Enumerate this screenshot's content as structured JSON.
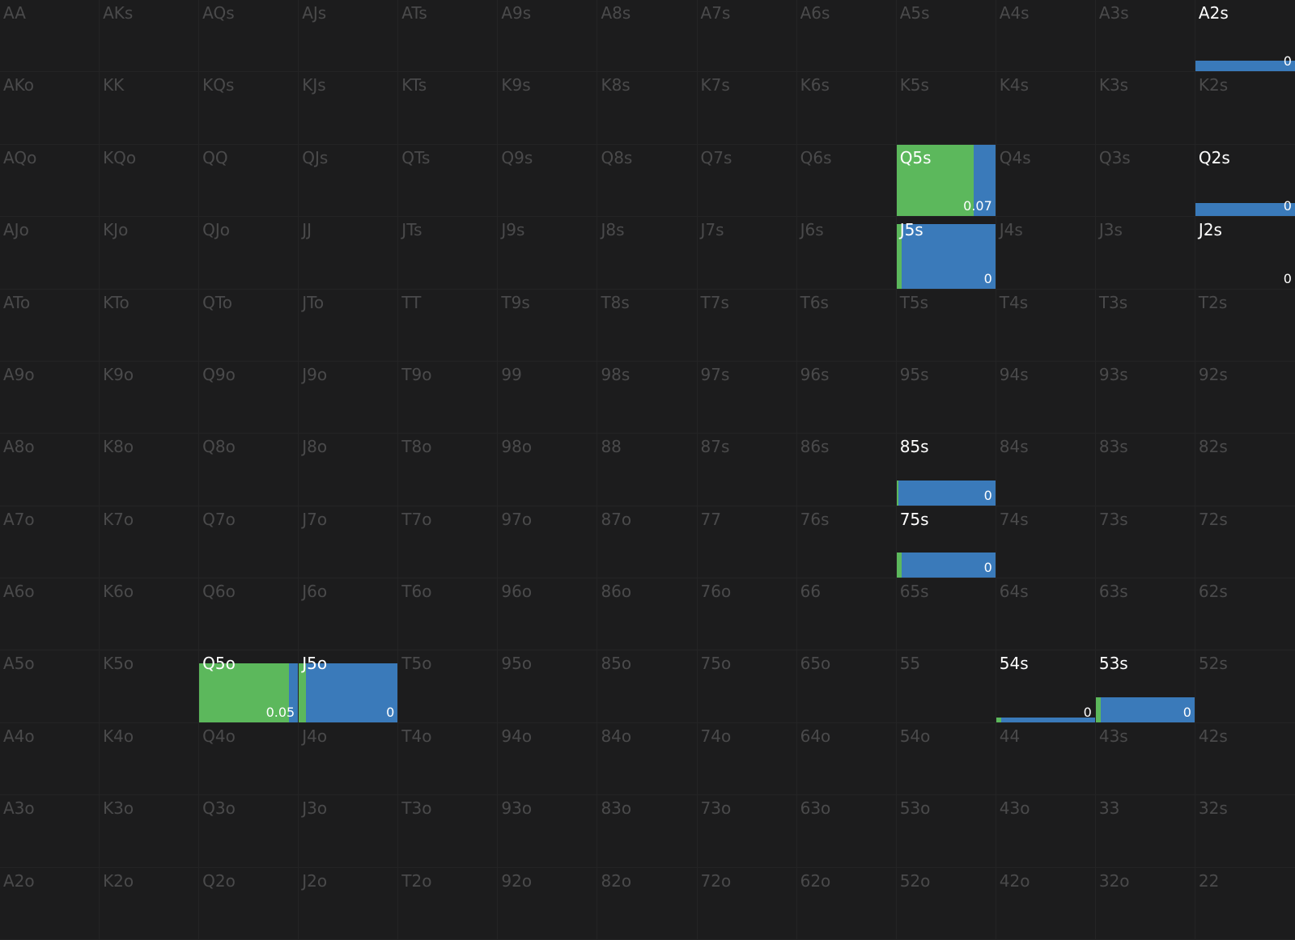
{
  "colors": {
    "background": "#1c1c1d",
    "inactive_label": "#4a4a4b",
    "active_label": "#ffffff",
    "green": "#5cb85c",
    "blue": "#3a7aba"
  },
  "rows": [
    [
      "AA",
      "AKs",
      "AQs",
      "AJs",
      "ATs",
      "A9s",
      "A8s",
      "A7s",
      "A6s",
      "A5s",
      "A4s",
      "A3s",
      "A2s"
    ],
    [
      "AKo",
      "KK",
      "KQs",
      "KJs",
      "KTs",
      "K9s",
      "K8s",
      "K7s",
      "K6s",
      "K5s",
      "K4s",
      "K3s",
      "K2s"
    ],
    [
      "AQo",
      "KQo",
      "QQ",
      "QJs",
      "QTs",
      "Q9s",
      "Q8s",
      "Q7s",
      "Q6s",
      "Q5s",
      "Q4s",
      "Q3s",
      "Q2s"
    ],
    [
      "AJo",
      "KJo",
      "QJo",
      "JJ",
      "JTs",
      "J9s",
      "J8s",
      "J7s",
      "J6s",
      "J5s",
      "J4s",
      "J3s",
      "J2s"
    ],
    [
      "ATo",
      "KTo",
      "QTo",
      "JTo",
      "TT",
      "T9s",
      "T8s",
      "T7s",
      "T6s",
      "T5s",
      "T4s",
      "T3s",
      "T2s"
    ],
    [
      "A9o",
      "K9o",
      "Q9o",
      "J9o",
      "T9o",
      "99",
      "98s",
      "97s",
      "96s",
      "95s",
      "94s",
      "93s",
      "92s"
    ],
    [
      "A8o",
      "K8o",
      "Q8o",
      "J8o",
      "T8o",
      "98o",
      "88",
      "87s",
      "86s",
      "85s",
      "84s",
      "83s",
      "82s"
    ],
    [
      "A7o",
      "K7o",
      "Q7o",
      "J7o",
      "T7o",
      "97o",
      "87o",
      "77",
      "76s",
      "75s",
      "74s",
      "73s",
      "72s"
    ],
    [
      "A6o",
      "K6o",
      "Q6o",
      "J6o",
      "T6o",
      "96o",
      "86o",
      "76o",
      "66",
      "65s",
      "64s",
      "63s",
      "62s"
    ],
    [
      "A5o",
      "K5o",
      "Q5o",
      "J5o",
      "T5o",
      "95o",
      "85o",
      "75o",
      "65o",
      "55",
      "54s",
      "53s",
      "52s"
    ],
    [
      "A4o",
      "K4o",
      "Q4o",
      "J4o",
      "T4o",
      "94o",
      "84o",
      "74o",
      "64o",
      "54o",
      "44",
      "43s",
      "42s"
    ],
    [
      "A3o",
      "K3o",
      "Q3o",
      "J3o",
      "T3o",
      "93o",
      "83o",
      "73o",
      "63o",
      "53o",
      "43o",
      "33",
      "32s"
    ],
    [
      "A2o",
      "K2o",
      "Q2o",
      "J2o",
      "T2o",
      "92o",
      "82o",
      "72o",
      "62o",
      "52o",
      "42o",
      "32o",
      "22"
    ]
  ],
  "active": {
    "A2s": {
      "fill": 0.15,
      "green": 0.0,
      "value": "0"
    },
    "Q5s": {
      "fill": 1.0,
      "green": 0.78,
      "value": "0.07"
    },
    "Q2s": {
      "fill": 0.18,
      "green": 0.0,
      "value": "0"
    },
    "J5s": {
      "fill": 0.9,
      "green": 0.05,
      "value": "0"
    },
    "J2s": {
      "fill": 0.0,
      "green": 0.0,
      "value": "0"
    },
    "85s": {
      "fill": 0.35,
      "green": 0.02,
      "value": "0"
    },
    "75s": {
      "fill": 0.35,
      "green": 0.05,
      "value": "0"
    },
    "Q5o": {
      "fill": 0.82,
      "green": 0.91,
      "value": "0.05"
    },
    "J5o": {
      "fill": 0.82,
      "green": 0.07,
      "value": "0"
    },
    "54s": {
      "fill": 0.07,
      "green": 0.05,
      "value": "0"
    },
    "53s": {
      "fill": 0.35,
      "green": 0.05,
      "value": "0"
    }
  }
}
